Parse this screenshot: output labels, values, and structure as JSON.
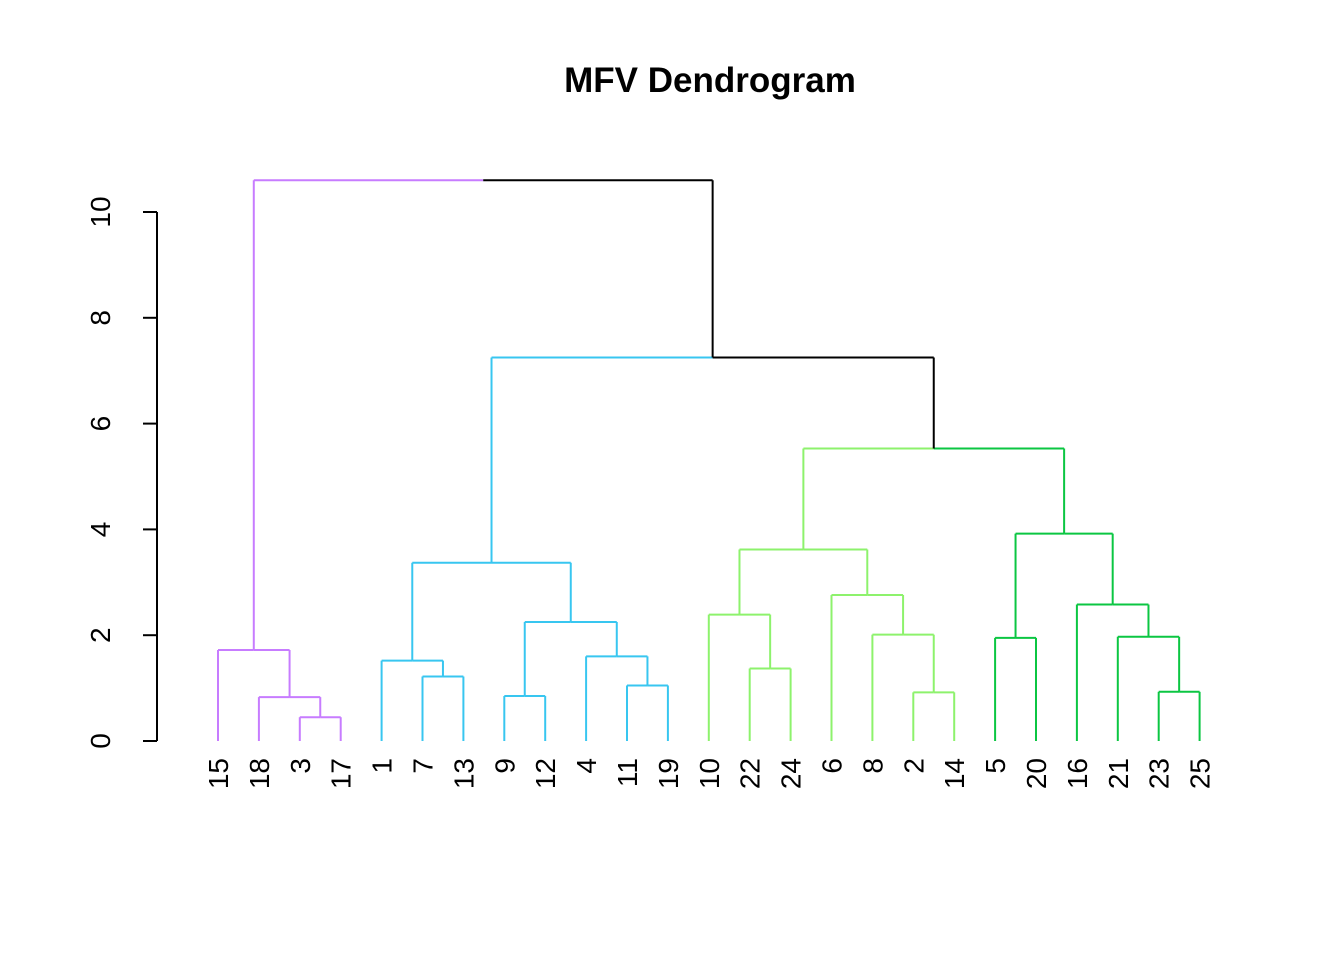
{
  "chart_data": {
    "type": "dendrogram",
    "title": "MFV Dendrogram",
    "xlabel": "",
    "ylabel": "",
    "ylim": [
      0,
      10.6
    ],
    "yticks": [
      0,
      2,
      4,
      6,
      8,
      10
    ],
    "grid": false,
    "leaves": [
      "15",
      "18",
      "3",
      "17",
      "1",
      "7",
      "13",
      "9",
      "12",
      "4",
      "11",
      "19",
      "10",
      "22",
      "24",
      "6",
      "8",
      "2",
      "14",
      "5",
      "20",
      "16",
      "21",
      "23",
      "25"
    ],
    "clusters": [
      {
        "leaves": [
          "15",
          "18",
          "3",
          "17"
        ],
        "color": "#C77CFF"
      },
      {
        "leaves": [
          "1",
          "7",
          "13",
          "9",
          "12",
          "4",
          "11",
          "19"
        ],
        "color": "#38C6F0"
      },
      {
        "leaves": [
          "10",
          "22",
          "24",
          "6",
          "8",
          "2",
          "14"
        ],
        "color": "#8DF26C"
      },
      {
        "leaves": [
          "5",
          "20",
          "16",
          "21",
          "23",
          "25"
        ],
        "color": "#0BC642"
      }
    ],
    "root_color": "#000000",
    "merges": [
      {
        "id": "a1",
        "left": "3",
        "right": "17",
        "height": 0.45
      },
      {
        "id": "a2",
        "left": "18",
        "right": "a1",
        "height": 0.83
      },
      {
        "id": "a3",
        "left": "15",
        "right": "a2",
        "height": 1.72
      },
      {
        "id": "b1",
        "left": "7",
        "right": "13",
        "height": 1.22
      },
      {
        "id": "b2",
        "left": "1",
        "right": "b1",
        "height": 1.52
      },
      {
        "id": "b3",
        "left": "9",
        "right": "12",
        "height": 0.85
      },
      {
        "id": "b4",
        "left": "11",
        "right": "19",
        "height": 1.05
      },
      {
        "id": "b5",
        "left": "4",
        "right": "b4",
        "height": 1.6
      },
      {
        "id": "b6",
        "left": "b3",
        "right": "b5",
        "height": 2.25
      },
      {
        "id": "b7",
        "left": "b2",
        "right": "b6",
        "height": 3.37
      },
      {
        "id": "c1",
        "left": "22",
        "right": "24",
        "height": 1.37
      },
      {
        "id": "c2",
        "left": "10",
        "right": "c1",
        "height": 2.39
      },
      {
        "id": "c3",
        "left": "2",
        "right": "14",
        "height": 0.92
      },
      {
        "id": "c4",
        "left": "8",
        "right": "c3",
        "height": 2.01
      },
      {
        "id": "c5",
        "left": "6",
        "right": "c4",
        "height": 2.76
      },
      {
        "id": "c6",
        "left": "c2",
        "right": "c5",
        "height": 3.62
      },
      {
        "id": "d1",
        "left": "5",
        "right": "20",
        "height": 1.95
      },
      {
        "id": "d2",
        "left": "23",
        "right": "25",
        "height": 0.93
      },
      {
        "id": "d3",
        "left": "21",
        "right": "d2",
        "height": 1.97
      },
      {
        "id": "d4",
        "left": "16",
        "right": "d3",
        "height": 2.58
      },
      {
        "id": "d5",
        "left": "d1",
        "right": "d4",
        "height": 3.92
      },
      {
        "id": "e1",
        "left": "c6",
        "right": "d5",
        "height": 5.53
      },
      {
        "id": "e2",
        "left": "b7",
        "right": "e1",
        "height": 7.25
      },
      {
        "id": "e3",
        "left": "a3",
        "right": "e2",
        "height": 10.6
      }
    ]
  }
}
